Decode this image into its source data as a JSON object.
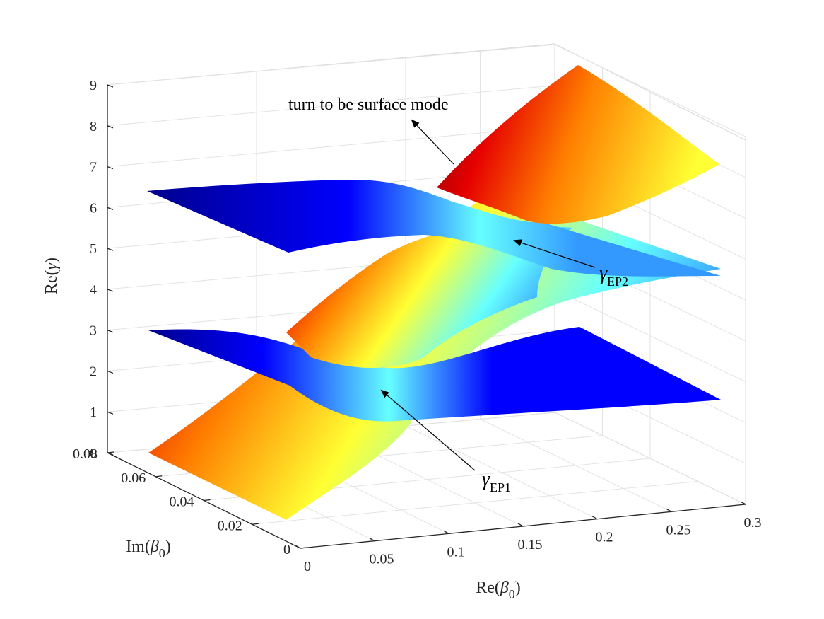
{
  "chart_data": {
    "type": "surface",
    "xlabel": {
      "main": "Re(",
      "greek": "β",
      "sub": "0",
      "close": ")"
    },
    "ylabel": {
      "main": "Im(",
      "greek": "β",
      "sub": "0",
      "close": ")"
    },
    "zlabel": {
      "main": "Re(",
      "greek": "γ",
      "close": ")"
    },
    "xlim": [
      0,
      0.3
    ],
    "ylim": [
      0,
      0.08
    ],
    "zlim": [
      0,
      9
    ],
    "x_ticks": [
      "0",
      "0.05",
      "0.1",
      "0.15",
      "0.2",
      "0.25",
      "0.3"
    ],
    "y_ticks": [
      "0",
      "0.02",
      "0.04",
      "0.06",
      "0.08"
    ],
    "z_ticks": [
      "0",
      "1",
      "2",
      "3",
      "4",
      "5",
      "6",
      "7",
      "8",
      "9"
    ],
    "grid": true,
    "colormap": "jet",
    "series": [
      {
        "name": "",
        "description_values": {
          "x": [
            0,
            0.3
          ],
          "y": [
            0,
            0.08
          ],
          "z_range": [
            0.3,
            8.9
          ]
        }
      },
      {
        "name": "",
        "z_range": [
          1.7,
          3.6
        ]
      },
      {
        "name": "",
        "z_range": [
          4.5,
          6.6
        ]
      }
    ],
    "annotations": [
      {
        "text": "turn to be surface mode"
      },
      {
        "greek": "γ",
        "sub": "EP2"
      },
      {
        "greek": "γ",
        "sub": "EP1"
      }
    ],
    "colors": {
      "deep_red": "#7f0000",
      "red": "#e60000",
      "orange": "#ff8000",
      "yellow": "#ffff33",
      "cyan": "#66ffff",
      "light_blue": "#3399ff",
      "blue": "#0000ff",
      "navy": "#00008c"
    }
  }
}
